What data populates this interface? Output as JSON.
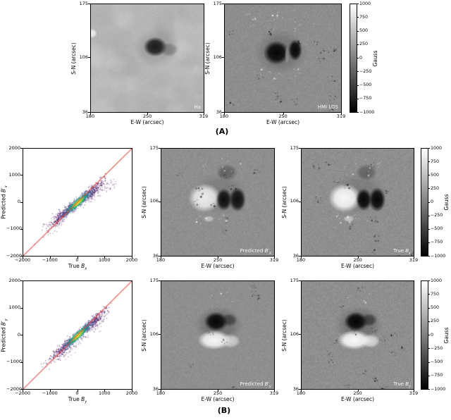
{
  "captions": {
    "a": "(A)",
    "b": "(B)"
  },
  "image_axes": {
    "xlabel": "E-W (arcsec)",
    "ylabel": "S-N (arcsec)",
    "xticks": [
      "180",
      "250",
      "319"
    ],
    "yticks": [
      "175",
      "106",
      "36"
    ]
  },
  "scatter_axes": {
    "xticks": [
      "−2000",
      "−1000",
      "0",
      "1000",
      "2000"
    ],
    "yticks": [
      "2000",
      "1000",
      "0",
      "−1000",
      "−2000"
    ]
  },
  "colorbar": {
    "label": "Gauss",
    "ticks": [
      "1000",
      "750",
      "500",
      "250",
      "0",
      "−250",
      "−500",
      "−750",
      "−1000"
    ],
    "range": [
      -1000,
      1000
    ]
  },
  "panel_labels": {
    "ha": {
      "prefix": "Ha",
      "sym": "",
      "sub": ""
    },
    "hmi": {
      "prefix": "HMI LOS",
      "sym": "",
      "sub": ""
    },
    "pred_bx": {
      "prefix": "Predicted ",
      "sym": "B′",
      "sub": "x"
    },
    "true_bx": {
      "prefix": "True ",
      "sym": "B",
      "sub": "x"
    },
    "pred_by": {
      "prefix": "Predicted ",
      "sym": "B′",
      "sub": "y"
    },
    "true_by": {
      "prefix": "True ",
      "sym": "B",
      "sub": "y"
    }
  },
  "scatter_labels": {
    "bx": {
      "x": {
        "prefix": "True ",
        "sym": "B",
        "sub": "x"
      },
      "y": {
        "prefix": "Predicted ",
        "sym": "B′",
        "sub": "x"
      }
    },
    "by": {
      "x": {
        "prefix": "True ",
        "sym": "B",
        "sub": "y"
      },
      "y": {
        "prefix": "Predicted ",
        "sym": "B′",
        "sub": "y"
      }
    }
  },
  "colors": {
    "identity_line": "#e8463c",
    "viridis": [
      "#440154",
      "#414487",
      "#2a788e",
      "#22a884",
      "#7ad151",
      "#fde725"
    ],
    "magnetogram_bg": "#8e8e8e",
    "halpha_bg": "#b6b6b6"
  },
  "chart_data": [
    {
      "id": "ha",
      "type": "image",
      "label": "Ha",
      "xlabel": "E-W (arcsec)",
      "ylabel": "S-N (arcsec)",
      "xlim": [
        180,
        319
      ],
      "ylim": [
        36,
        175
      ],
      "description": "H-alpha filtergram; dark sunspot near (255,115) arcsec on bright mottled chromosphere",
      "bg": "#b6b6b6",
      "noise": 5,
      "seed": 3,
      "mottle": true,
      "dark_speckles": 0,
      "white_bands": [],
      "features": [
        {
          "k": "halo",
          "x": 0.585,
          "y": 0.4,
          "rx": 0.21,
          "ry": 0.19,
          "c": "#6e6e6e",
          "a": 0.3
        },
        {
          "k": "dark",
          "x": 0.57,
          "y": 0.395,
          "rx": 0.105,
          "ry": 0.092,
          "c": "#101010",
          "a": 0.93
        },
        {
          "k": "dark",
          "x": 0.69,
          "y": 0.42,
          "rx": 0.085,
          "ry": 0.065,
          "c": "#4a4a4a",
          "a": 0.42
        },
        {
          "k": "bright",
          "x": 0.005,
          "y": 0.27,
          "rx": 0.05,
          "ry": 0.045,
          "c": "#ffffff",
          "a": 0.75
        }
      ]
    },
    {
      "id": "hmi",
      "type": "image",
      "label": "HMI LOS",
      "xlabel": "E-W (arcsec)",
      "ylabel": "S-N (arcsec)",
      "xlim": [
        180,
        319
      ],
      "ylim": [
        36,
        175
      ],
      "colorbar_label": "Gauss",
      "colorbar_range": [
        -1000,
        1000
      ],
      "description": "HMI line-of-sight magnetogram; two black umbral lobes near (250,110) with salt-and-pepper plage",
      "bg": "#8e8e8e",
      "noise": 9,
      "seed": 11,
      "mottle": false,
      "dark_speckles": 90,
      "white_bands": [
        {
          "x0": 0.15,
          "x1": 0.8,
          "y0": 0.04,
          "y1": 0.28,
          "n": 22
        },
        {
          "x0": 0.25,
          "x1": 0.65,
          "y0": 0.58,
          "y1": 0.7,
          "n": 12
        }
      ],
      "features": [
        {
          "k": "halo",
          "x": 0.48,
          "y": 0.445,
          "rx": 0.225,
          "ry": 0.205,
          "c": "#4e4e4e",
          "a": 0.38
        },
        {
          "k": "dark",
          "x": 0.445,
          "y": 0.45,
          "rx": 0.112,
          "ry": 0.112,
          "c": "#000000",
          "a": 0.96
        },
        {
          "k": "dark",
          "x": 0.605,
          "y": 0.425,
          "rx": 0.06,
          "ry": 0.1,
          "c": "#000000",
          "a": 0.93
        },
        {
          "k": "bright",
          "x": 0.535,
          "y": 0.47,
          "rx": 0.018,
          "ry": 0.085,
          "c": "#a0a0a0",
          "a": 0.65
        }
      ]
    },
    {
      "id": "scat_bx",
      "type": "scatter",
      "xlabel": "True Bx",
      "ylabel": "Predicted B'x",
      "xlim": [
        -2000,
        2000
      ],
      "ylim": [
        -2000,
        2000
      ],
      "reference_line": "y = x",
      "legend": "none",
      "grid": false,
      "description": "Density scatter of predicted vs true Bx (Gauss); tight diagonal correlation, yellow-green density core at origin, cloud spans about -1800 to +1300 G",
      "seed": 7,
      "slope": 0.82,
      "sigma": 470,
      "perp": 80,
      "clip": [
        -1850,
        1100
      ],
      "n": 1500,
      "core": {
        "sigma": 135,
        "perp": 40,
        "n": 1300
      },
      "wings": [
        {
          "n": 55,
          "x0": 400,
          "x1": 1400,
          "slope": 0.5,
          "offset": 0,
          "perp": 120
        },
        {
          "n": 45,
          "x0": -1100,
          "x1": -400,
          "slope": 0.82,
          "offset": -140,
          "perp": 140
        }
      ]
    },
    {
      "id": "pred_bx",
      "type": "image",
      "label": "Predicted B'x",
      "xlabel": "E-W (arcsec)",
      "ylabel": "S-N (arcsec)",
      "xlim": [
        180,
        319
      ],
      "ylim": [
        36,
        175
      ],
      "colorbar_label": "Gauss",
      "colorbar_range": [
        -1000,
        1000
      ],
      "description": "Predicted transverse Bx map; bright positive lobe west, two dark negative lobes east",
      "bg": "#8f8f8f",
      "noise": 9,
      "seed": 21,
      "mottle": false,
      "dark_speckles": 60,
      "white_bands": [
        {
          "x0": 0.3,
          "x1": 0.6,
          "y0": 0.6,
          "y1": 0.7,
          "n": 10
        },
        {
          "x0": 0.35,
          "x1": 0.75,
          "y0": 0.08,
          "y1": 0.25,
          "n": 10
        }
      ],
      "features": [
        {
          "k": "halo",
          "x": 0.52,
          "y": 0.42,
          "rx": 0.24,
          "ry": 0.2,
          "c": "#565656",
          "a": 0.3
        },
        {
          "k": "bright",
          "x": 0.385,
          "y": 0.46,
          "rx": 0.145,
          "ry": 0.135,
          "c": "#fafafa",
          "a": 0.88
        },
        {
          "k": "dark",
          "x": 0.555,
          "y": 0.475,
          "rx": 0.072,
          "ry": 0.105,
          "c": "#050505",
          "a": 0.92
        },
        {
          "k": "dark",
          "x": 0.675,
          "y": 0.475,
          "rx": 0.075,
          "ry": 0.115,
          "c": "#050505",
          "a": 0.92
        },
        {
          "k": "dark",
          "x": 0.58,
          "y": 0.22,
          "rx": 0.095,
          "ry": 0.075,
          "c": "#303030",
          "a": 0.45
        },
        {
          "k": "bright",
          "x": 0.42,
          "y": 0.655,
          "rx": 0.05,
          "ry": 0.03,
          "c": "#f0f0f0",
          "a": 0.5
        }
      ]
    },
    {
      "id": "true_bx",
      "type": "image",
      "label": "True Bx",
      "xlabel": "E-W (arcsec)",
      "ylabel": "S-N (arcsec)",
      "xlim": [
        180,
        319
      ],
      "ylim": [
        36,
        175
      ],
      "colorbar_label": "Gauss",
      "colorbar_range": [
        -1000,
        1000
      ],
      "description": "True transverse Bx map; same morphology as prediction with crisper detail",
      "bg": "#8f8f8f",
      "noise": 10,
      "seed": 22,
      "mottle": false,
      "dark_speckles": 85,
      "white_bands": [
        {
          "x0": 0.3,
          "x1": 0.6,
          "y0": 0.6,
          "y1": 0.7,
          "n": 12
        },
        {
          "x0": 0.35,
          "x1": 0.75,
          "y0": 0.08,
          "y1": 0.25,
          "n": 12
        }
      ],
      "features": [
        {
          "k": "halo",
          "x": 0.52,
          "y": 0.42,
          "rx": 0.24,
          "ry": 0.2,
          "c": "#565656",
          "a": 0.32
        },
        {
          "k": "bright",
          "x": 0.385,
          "y": 0.46,
          "rx": 0.145,
          "ry": 0.135,
          "c": "#ffffff",
          "a": 0.95
        },
        {
          "k": "dark",
          "x": 0.555,
          "y": 0.475,
          "rx": 0.072,
          "ry": 0.105,
          "c": "#000000",
          "a": 0.95
        },
        {
          "k": "dark",
          "x": 0.675,
          "y": 0.475,
          "rx": 0.075,
          "ry": 0.115,
          "c": "#000000",
          "a": 0.95
        },
        {
          "k": "dark",
          "x": 0.58,
          "y": 0.22,
          "rx": 0.095,
          "ry": 0.075,
          "c": "#303030",
          "a": 0.45
        },
        {
          "k": "bright",
          "x": 0.42,
          "y": 0.655,
          "rx": 0.05,
          "ry": 0.03,
          "c": "#f0f0f0",
          "a": 0.55
        }
      ]
    },
    {
      "id": "scat_by",
      "type": "scatter",
      "xlabel": "True By",
      "ylabel": "Predicted B'y",
      "xlim": [
        -2000,
        2000
      ],
      "ylim": [
        -2000,
        2000
      ],
      "reference_line": "y = x",
      "legend": "none",
      "grid": false,
      "description": "Density scatter of predicted vs true By (Gauss); diagonal cloud from about (-1600,-1400) to (1200,1050), green-yellow core at origin",
      "seed": 13,
      "slope": 0.88,
      "sigma": 450,
      "perp": 72,
      "clip": [
        -1650,
        1250
      ],
      "n": 1500,
      "core": {
        "sigma": 125,
        "perp": 38,
        "n": 1300
      },
      "wings": [
        {
          "n": 60,
          "x0": -700,
          "x1": 300,
          "slope": 0.88,
          "offset": -280,
          "perp": 90
        },
        {
          "n": 35,
          "x0": 300,
          "x1": 950,
          "slope": 0.62,
          "offset": -60,
          "perp": 100
        }
      ]
    },
    {
      "id": "pred_by",
      "type": "image",
      "label": "Predicted B'y",
      "xlabel": "E-W (arcsec)",
      "ylabel": "S-N (arcsec)",
      "xlim": [
        180,
        319
      ],
      "ylim": [
        36,
        175
      ],
      "colorbar_label": "Gauss",
      "colorbar_range": [
        -1000,
        1000
      ],
      "description": "Predicted transverse By map; dark negative blob north of bright positive blob",
      "bg": "#8f8f8f",
      "noise": 8,
      "seed": 31,
      "mottle": false,
      "dark_speckles": 40,
      "white_bands": [
        {
          "x0": 0.4,
          "x1": 0.65,
          "y0": 0.1,
          "y1": 0.2,
          "n": 5
        }
      ],
      "features": [
        {
          "k": "halo",
          "x": 0.51,
          "y": 0.4,
          "rx": 0.21,
          "ry": 0.17,
          "c": "#464646",
          "a": 0.4
        },
        {
          "k": "dark",
          "x": 0.485,
          "y": 0.375,
          "rx": 0.105,
          "ry": 0.09,
          "c": "#000000",
          "a": 0.95
        },
        {
          "k": "dark",
          "x": 0.6,
          "y": 0.36,
          "rx": 0.075,
          "ry": 0.06,
          "c": "#1e1e1e",
          "a": 0.55
        },
        {
          "k": "bright",
          "x": 0.47,
          "y": 0.545,
          "rx": 0.15,
          "ry": 0.09,
          "c": "#ffffff",
          "a": 0.92
        },
        {
          "k": "bright",
          "x": 0.615,
          "y": 0.555,
          "rx": 0.085,
          "ry": 0.065,
          "c": "#ececec",
          "a": 0.65
        }
      ]
    },
    {
      "id": "true_by",
      "type": "image",
      "label": "True By",
      "xlabel": "E-W (arcsec)",
      "ylabel": "S-N (arcsec)",
      "xlim": [
        180,
        319
      ],
      "ylim": [
        36,
        175
      ],
      "colorbar_label": "Gauss",
      "colorbar_range": [
        -1000,
        1000
      ],
      "description": "True transverse By map; same bipolar morphology with crisper detail",
      "bg": "#8f8f8f",
      "noise": 10,
      "seed": 32,
      "mottle": false,
      "dark_speckles": 85,
      "white_bands": [
        {
          "x0": 0.4,
          "x1": 0.65,
          "y0": 0.1,
          "y1": 0.2,
          "n": 8
        }
      ],
      "features": [
        {
          "k": "halo",
          "x": 0.51,
          "y": 0.4,
          "rx": 0.21,
          "ry": 0.17,
          "c": "#464646",
          "a": 0.42
        },
        {
          "k": "dark",
          "x": 0.485,
          "y": 0.375,
          "rx": 0.105,
          "ry": 0.09,
          "c": "#000000",
          "a": 0.97
        },
        {
          "k": "dark",
          "x": 0.6,
          "y": 0.36,
          "rx": 0.075,
          "ry": 0.06,
          "c": "#1e1e1e",
          "a": 0.6
        },
        {
          "k": "bright",
          "x": 0.47,
          "y": 0.545,
          "rx": 0.15,
          "ry": 0.09,
          "c": "#ffffff",
          "a": 0.95
        },
        {
          "k": "bright",
          "x": 0.615,
          "y": 0.555,
          "rx": 0.085,
          "ry": 0.065,
          "c": "#f5f5f5",
          "a": 0.7
        }
      ]
    }
  ]
}
